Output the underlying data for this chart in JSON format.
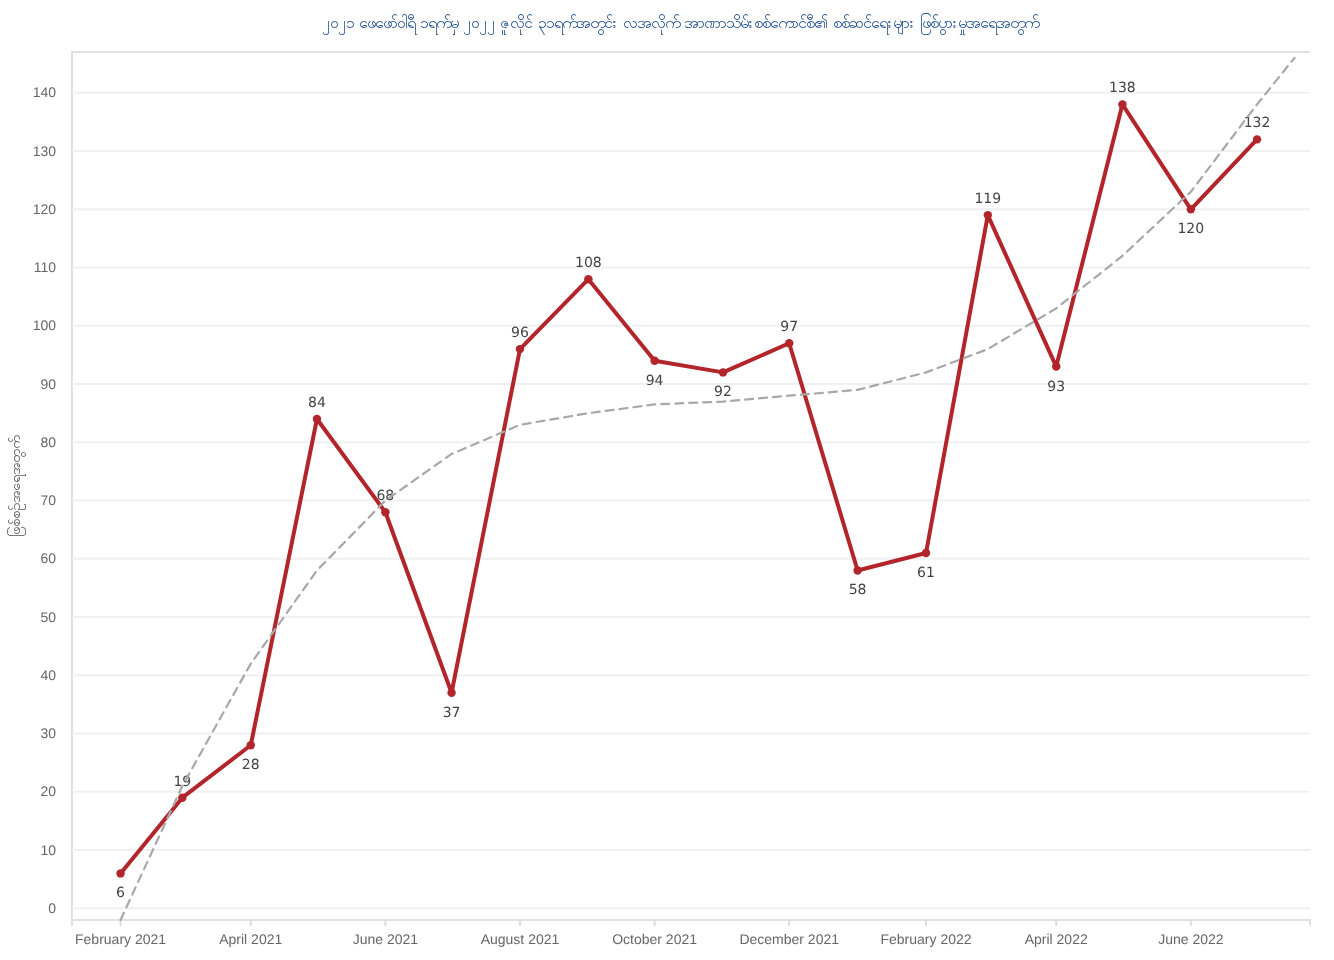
{
  "chart_data": {
    "type": "line",
    "title": "၂၀၂၁ ဖေဖော်ဝါရီ ၁ရက်မှ ၂၀၂၂ ဇူလိုင် ၃၁ရက်အတွင်း လအလိုက် အာဏာသိမ်းစစ်ကောင်စီ၏ စစ်ဆင်ရေးများ ဖြစ်ပွားမှုအရေအတွက်",
    "ylabel": "ဖြစ်စဉ်အရေအတွက်",
    "xlim": [
      "2021-01-10",
      "2022-07-25"
    ],
    "ylim": [
      -2,
      147
    ],
    "yticks": [
      0,
      10,
      20,
      30,
      40,
      50,
      60,
      70,
      80,
      90,
      100,
      110,
      120,
      130,
      140
    ],
    "xticks": [
      {
        "value": "2021-02",
        "label": "February 2021"
      },
      {
        "value": "2021-04",
        "label": "April 2021"
      },
      {
        "value": "2021-06",
        "label": "June 2021"
      },
      {
        "value": "2021-08",
        "label": "August 2021"
      },
      {
        "value": "2021-10",
        "label": "October 2021"
      },
      {
        "value": "2021-12",
        "label": "December 2021"
      },
      {
        "value": "2022-02",
        "label": "February 2022"
      },
      {
        "value": "2022-04",
        "label": "April 2022"
      },
      {
        "value": "2022-06",
        "label": "June 2022"
      }
    ],
    "grid": "y",
    "series": [
      {
        "color": "#b2262b",
        "marker": "circle",
        "line_style": "solid",
        "data_labels": true,
        "x": [
          "2021-02",
          "2021-03",
          "2021-04",
          "2021-05",
          "2021-06",
          "2021-07",
          "2021-08",
          "2021-09",
          "2021-10",
          "2021-11",
          "2021-12",
          "2022-01",
          "2022-02",
          "2022-03",
          "2022-04",
          "2022-05",
          "2022-06",
          "2022-07"
        ],
        "values": [
          6,
          19,
          28,
          84,
          68,
          37,
          96,
          108,
          94,
          92,
          97,
          58,
          61,
          119,
          93,
          138,
          120,
          132
        ]
      },
      {
        "color": "#a8a8a8",
        "marker": "none",
        "line_style": "dashed",
        "x": [
          "2021-02",
          "2021-03",
          "2021-04",
          "2021-05",
          "2021-06",
          "2021-07",
          "2021-08",
          "2021-09",
          "2021-10",
          "2021-11",
          "2021-12",
          "2022-01",
          "2022-02",
          "2022-03",
          "2022-04",
          "2022-05",
          "2022-06",
          "2022-07",
          "2022-07-18"
        ],
        "values": [
          -2,
          21,
          42,
          58,
          70,
          78,
          83,
          85,
          86.5,
          87,
          88,
          89,
          92,
          96,
          103,
          112,
          123,
          138,
          146
        ]
      }
    ]
  }
}
